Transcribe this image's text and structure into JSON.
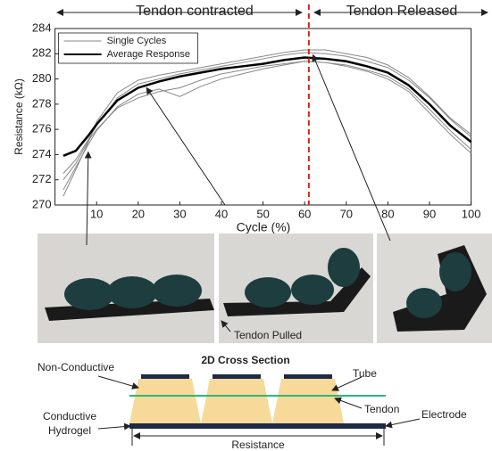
{
  "chart_data": {
    "type": "line",
    "x_label": "Cycle (%)",
    "y_label": "Resistance (kΩ)",
    "x": [
      2,
      5,
      8,
      10,
      15,
      20,
      25,
      30,
      35,
      40,
      45,
      50,
      55,
      60,
      65,
      70,
      75,
      80,
      85,
      90,
      95,
      100
    ],
    "series": [
      {
        "name": "Single Cycles",
        "color": "#888888",
        "values": [
          272.5,
          273.6,
          275.2,
          276.3,
          278.5,
          279.6,
          280.0,
          280.4,
          280.7,
          281.0,
          281.3,
          281.6,
          281.9,
          282.1,
          282.0,
          281.8,
          281.4,
          280.9,
          279.9,
          278.5,
          276.8,
          275.4
        ]
      },
      {
        "color": "#888888",
        "values": [
          271.2,
          273.0,
          274.8,
          275.9,
          277.8,
          278.8,
          279.2,
          278.6,
          279.4,
          280.0,
          280.4,
          280.8,
          281.1,
          281.4,
          281.3,
          281.1,
          280.7,
          280.2,
          279.2,
          277.6,
          275.9,
          274.4
        ]
      },
      {
        "color": "#888888",
        "values": [
          270.7,
          272.8,
          275.0,
          276.6,
          278.9,
          279.9,
          280.3,
          280.6,
          280.9,
          281.2,
          281.5,
          281.8,
          282.1,
          282.3,
          282.3,
          282.0,
          281.7,
          281.1,
          280.1,
          278.6,
          276.9,
          275.6
        ]
      },
      {
        "color": "#888888",
        "values": [
          272.0,
          273.3,
          275.1,
          276.0,
          277.7,
          278.5,
          279.0,
          279.3,
          279.9,
          280.4,
          280.7,
          281.0,
          281.2,
          281.4,
          281.3,
          281.0,
          280.6,
          280.0,
          279.0,
          277.3,
          275.6,
          274.1
        ]
      },
      {
        "name": "Average Response",
        "color": "#000000",
        "values": [
          273.9,
          274.3,
          275.5,
          276.4,
          278.3,
          279.3,
          279.8,
          280.2,
          280.5,
          280.8,
          281.0,
          281.2,
          281.5,
          281.7,
          281.6,
          281.4,
          281.0,
          280.5,
          279.5,
          278.0,
          276.3,
          275.0
        ]
      }
    ],
    "xlim": [
      0,
      100
    ],
    "xticks": [
      10,
      20,
      30,
      40,
      50,
      60,
      70,
      80,
      90,
      100
    ],
    "ylim": [
      270,
      284
    ],
    "yticks": [
      270,
      272,
      274,
      276,
      278,
      280,
      282,
      284
    ],
    "legend": "upper left",
    "vline": 61,
    "vline_color": "#e0201a",
    "phase_left": "Tendon contracted",
    "phase_right": "Tendon Released"
  },
  "photos": {
    "caption": "Tendon Pulled"
  },
  "diagram": {
    "title": "2D Cross Section",
    "non_conductive": "Non-Conductive",
    "tube": "Tube",
    "tendon": "Tendon",
    "hydrogel": [
      "Conductive",
      "Hydrogel"
    ],
    "electrode": "Electrode",
    "resistance": "Resistance"
  }
}
